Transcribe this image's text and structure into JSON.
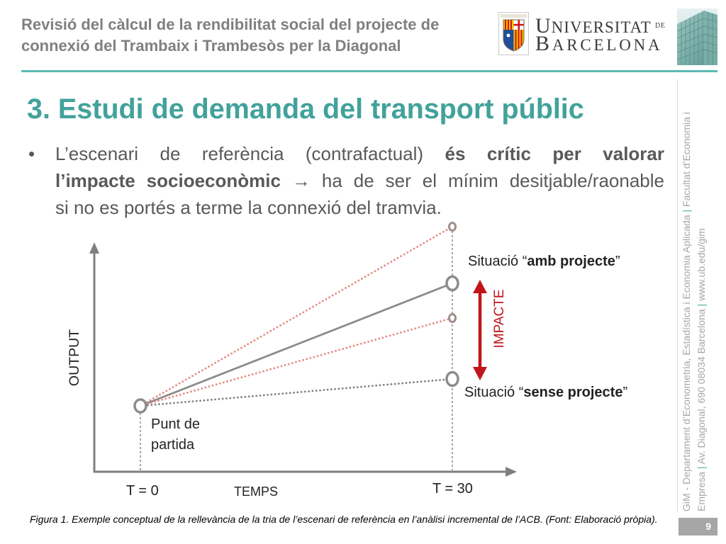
{
  "header": {
    "subtitle_line1": "Revisió del càlcul de la rendibilitat social del projecte de",
    "subtitle_line2": "connexió del Trambaix i Trambesòs per la Diagonal"
  },
  "logo": {
    "seal_icon": "university-seal-icon",
    "word1": "UNIVERSITAT",
    "word1_suffix": "DE",
    "word2": "BARCELONA",
    "photo_icon": "building-photo"
  },
  "title": "3. Estudi de demanda del transport públic",
  "bullet": {
    "marker": "•",
    "lines": [
      [
        {
          "text": "L’escenari de referència (contrafactual) ",
          "bold": false
        },
        {
          "text": "és crític per valorar",
          "bold": true
        }
      ],
      [
        {
          "text": "l’impacte socioeconòmic",
          "bold": true
        },
        {
          "text": " → ha de ser el mínim desitjable/raonable",
          "bold": false
        }
      ],
      [
        {
          "text": "si no es portés a terme la connexió del tramvia.",
          "bold": false
        }
      ]
    ]
  },
  "diagram": {
    "y_axis_label": "OUTPUT",
    "x_axis_label": "TEMPS",
    "x_tick_start": "T = 0",
    "x_tick_end": "T = 30",
    "start_label": [
      "Punt de",
      "partida"
    ],
    "with_project": {
      "prefix": "Situació “",
      "emphasis": "amb projecte",
      "suffix": "”"
    },
    "without_project": {
      "prefix": "Situació “",
      "emphasis": "sense projecte",
      "suffix": "”"
    },
    "impact_label": "IMPACTE"
  },
  "caption": "Figura 1. Exemple conceptual de la rellevància de la tria de l’escenari de referència en l’anàlisi incremental de l’ACB. (Font: Elaboració pròpia).",
  "sidebar": {
    "line1": [
      "GiM - Departament d’Econometria, Estadística i Economia Aplicada ",
      "|",
      " Facultat d’Economia i"
    ],
    "line2": [
      "Empresa ",
      "|",
      " Av. Diagonal, 690 08034 Barcelona ",
      "|",
      " www.ub.edu/gim"
    ]
  },
  "page_number": "9",
  "colors": {
    "accent_teal": "#5bbab4",
    "title_teal": "#42a29b",
    "body_text": "#595959",
    "axis_gray": "#7f7f7f",
    "impact_red": "#c0161b",
    "alternative_scenario_red": "#e58b84"
  }
}
